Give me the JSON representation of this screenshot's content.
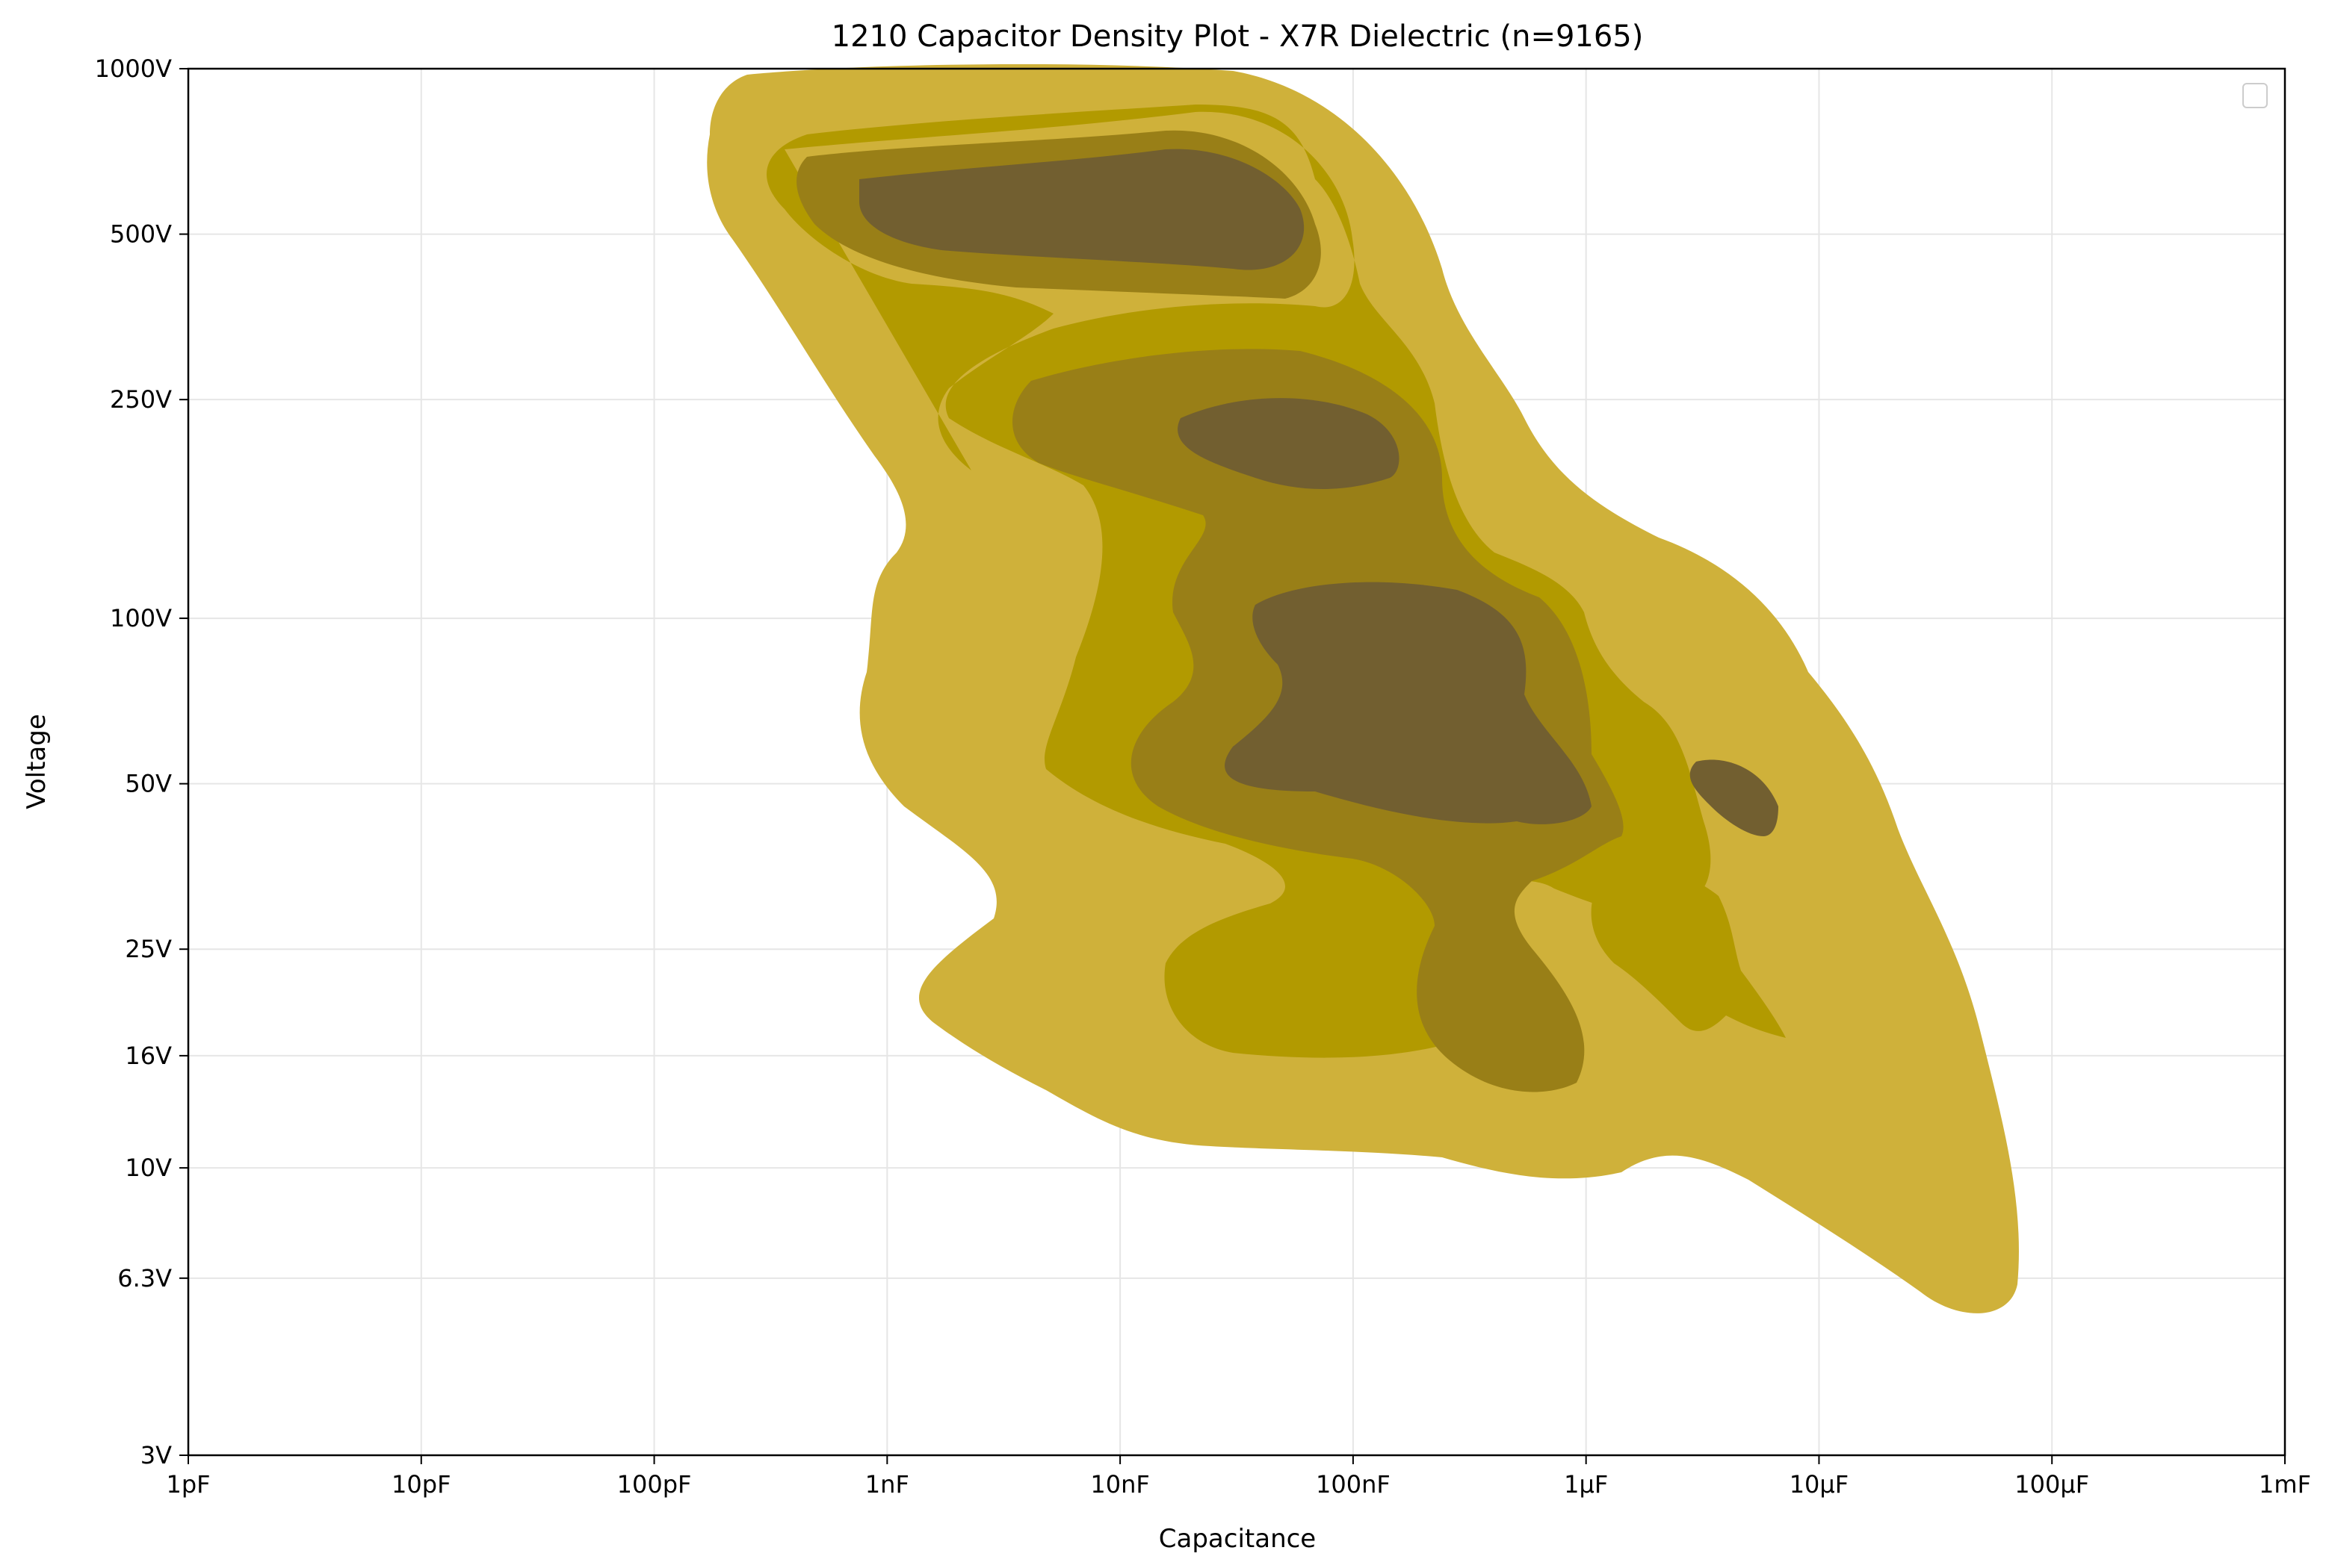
{
  "chart_data": {
    "type": "density_contour",
    "title": "1210 Capacitor Density Plot - X7R Dielectric (n=9165)",
    "xlabel": "Capacitance",
    "ylabel": "Voltage",
    "x_scale": "log",
    "y_scale": "log",
    "xlim": [
      "1pF",
      "1mF"
    ],
    "ylim": [
      "3V",
      "1000V"
    ],
    "x_ticks": [
      {
        "label": "1pF",
        "farads": 1e-12
      },
      {
        "label": "10pF",
        "farads": 1e-11
      },
      {
        "label": "100pF",
        "farads": 1e-10
      },
      {
        "label": "1nF",
        "farads": 1e-09
      },
      {
        "label": "10nF",
        "farads": 1e-08
      },
      {
        "label": "100nF",
        "farads": 1e-07
      },
      {
        "label": "1µF",
        "farads": 1e-06
      },
      {
        "label": "10µF",
        "farads": 1e-05
      },
      {
        "label": "100µF",
        "farads": 0.0001
      },
      {
        "label": "1mF",
        "farads": 0.001
      }
    ],
    "y_ticks": [
      {
        "label": "3V",
        "volts": 3
      },
      {
        "label": "6.3V",
        "volts": 6.3
      },
      {
        "label": "10V",
        "volts": 10
      },
      {
        "label": "16V",
        "volts": 16
      },
      {
        "label": "25V",
        "volts": 25
      },
      {
        "label": "50V",
        "volts": 50
      },
      {
        "label": "100V",
        "volts": 100
      },
      {
        "label": "250V",
        "volts": 250
      },
      {
        "label": "500V",
        "volts": 500
      },
      {
        "label": "1000V",
        "volts": 1000
      }
    ],
    "grid": true,
    "legend_placement": "top-right",
    "legend_entries": [],
    "levels": [
      {
        "level": 1,
        "color": "#cfb13a"
      },
      {
        "level": 2,
        "color": "#b29a00"
      },
      {
        "level": 3,
        "color": "#997f17"
      },
      {
        "level": 4,
        "color": "#725f30"
      }
    ]
  }
}
